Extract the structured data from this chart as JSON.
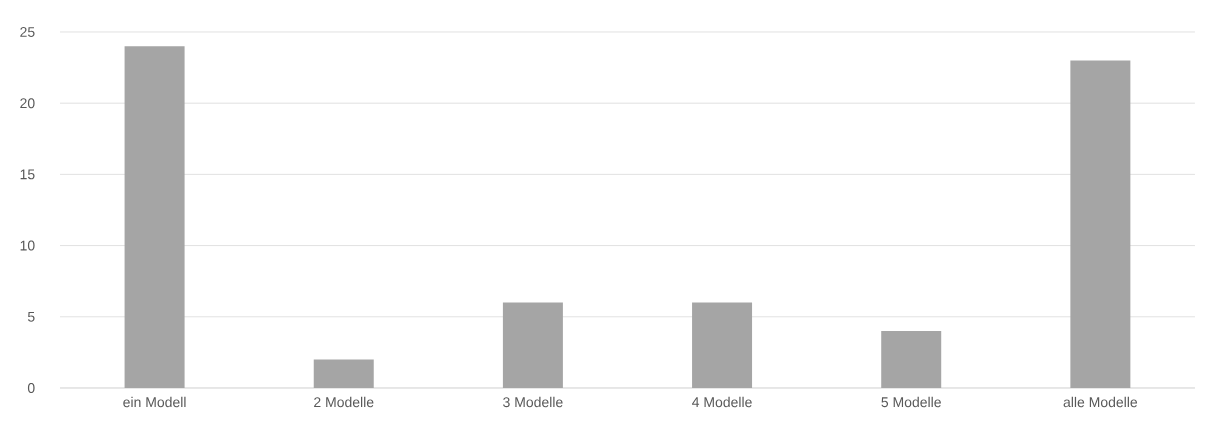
{
  "chart_data": {
    "type": "bar",
    "categories": [
      "ein Modell",
      "2 Modelle",
      "3 Modelle",
      "4 Modelle",
      "5 Modelle",
      "alle Modelle"
    ],
    "values": [
      24,
      2,
      6,
      6,
      4,
      23
    ],
    "color": "#a5a5a5",
    "ylim": [
      0,
      25
    ],
    "yticks": [
      0,
      5,
      10,
      15,
      20,
      25
    ],
    "grid": "y"
  }
}
